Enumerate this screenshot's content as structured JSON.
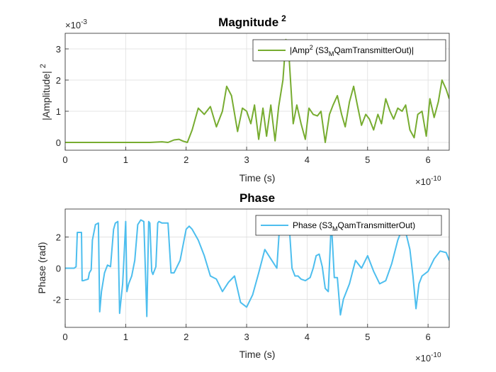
{
  "chart_data": [
    {
      "type": "line",
      "title": "Magnitude",
      "title_sup": "2",
      "xlabel": "Time (s)",
      "ylabel": "|Amplitude|",
      "ylabel_sup": "2",
      "x_exponent": "10",
      "x_exponent_power": "-10",
      "x_multiplier_prefix": "×",
      "y_exponent": "10",
      "y_exponent_power": "-3",
      "y_multiplier_prefix": "×",
      "xlim": [
        0,
        6.35
      ],
      "ylim": [
        -0.25,
        3.5
      ],
      "xticks": [
        "0",
        "1",
        "2",
        "3",
        "4",
        "5",
        "6"
      ],
      "yticks": [
        "0",
        "1",
        "2",
        "3"
      ],
      "grid": true,
      "legend_position": "top-right",
      "color": "#77ac30",
      "series": [
        {
          "name_parts": [
            "|Amp",
            "2",
            " (S3",
            "M",
            "QamTransmitterOut)|"
          ],
          "x": [
            0,
            0.5,
            1.0,
            1.4,
            1.6,
            1.7,
            1.8,
            1.88,
            1.95,
            2.02,
            2.1,
            2.2,
            2.3,
            2.4,
            2.5,
            2.6,
            2.67,
            2.75,
            2.85,
            2.93,
            3.0,
            3.07,
            3.13,
            3.2,
            3.27,
            3.33,
            3.4,
            3.47,
            3.53,
            3.6,
            3.65,
            3.7,
            3.77,
            3.83,
            3.9,
            3.97,
            4.03,
            4.1,
            4.17,
            4.23,
            4.3,
            4.37,
            4.43,
            4.5,
            4.57,
            4.63,
            4.7,
            4.77,
            4.83,
            4.9,
            4.97,
            5.03,
            5.1,
            5.17,
            5.23,
            5.3,
            5.37,
            5.43,
            5.5,
            5.57,
            5.63,
            5.7,
            5.77,
            5.83,
            5.9,
            5.97,
            6.03,
            6.1,
            6.17,
            6.23,
            6.3,
            6.35
          ],
          "y": [
            0,
            0,
            0,
            0,
            0.02,
            0.0,
            0.08,
            0.1,
            0.04,
            0.0,
            0.4,
            1.1,
            0.9,
            1.15,
            0.5,
            1.0,
            1.8,
            1.5,
            0.35,
            1.1,
            1.0,
            0.6,
            1.2,
            0.1,
            1.1,
            0.2,
            1.2,
            0.05,
            1.15,
            2.0,
            3.3,
            2.8,
            0.6,
            1.2,
            0.6,
            0.1,
            1.1,
            0.9,
            0.85,
            1.0,
            0.0,
            0.9,
            1.2,
            1.5,
            0.9,
            0.5,
            1.3,
            1.8,
            1.2,
            0.55,
            0.9,
            0.75,
            0.4,
            0.9,
            0.6,
            1.4,
            1.0,
            0.75,
            1.1,
            1.0,
            1.2,
            0.4,
            0.15,
            0.9,
            1.0,
            0.2,
            1.4,
            0.8,
            1.3,
            2.0,
            1.7,
            1.4
          ]
        }
      ]
    },
    {
      "type": "line",
      "title": "Phase",
      "xlabel": "Time (s)",
      "ylabel": "Phase (rad)",
      "x_exponent": "10",
      "x_exponent_power": "-10",
      "x_multiplier_prefix": "×",
      "xlim": [
        0,
        6.35
      ],
      "ylim": [
        -3.8,
        3.8
      ],
      "xticks": [
        "0",
        "1",
        "2",
        "3",
        "4",
        "5",
        "6"
      ],
      "yticks": [
        "-2",
        "0",
        "2"
      ],
      "ytick_values": [
        -2,
        0,
        2
      ],
      "grid": true,
      "legend_position": "top-right",
      "color": "#4dbeee",
      "series": [
        {
          "name": "Phase (S3",
          "name_sub": "M",
          "name_tail": "QamTransmitterOut)",
          "x": [
            0,
            0.15,
            0.18,
            0.2,
            0.27,
            0.28,
            0.3,
            0.38,
            0.4,
            0.43,
            0.45,
            0.5,
            0.55,
            0.57,
            0.6,
            0.65,
            0.7,
            0.75,
            0.8,
            0.83,
            0.87,
            0.9,
            0.95,
            0.97,
            1.0,
            1.02,
            1.05,
            1.1,
            1.15,
            1.2,
            1.25,
            1.3,
            1.35,
            1.38,
            1.4,
            1.43,
            1.45,
            1.5,
            1.53,
            1.55,
            1.6,
            1.65,
            1.7,
            1.75,
            1.8,
            1.9,
            2.0,
            2.05,
            2.1,
            2.2,
            2.3,
            2.4,
            2.5,
            2.6,
            2.7,
            2.8,
            2.9,
            3.0,
            3.1,
            3.2,
            3.3,
            3.4,
            3.5,
            3.55,
            3.6,
            3.7,
            3.75,
            3.8,
            3.85,
            3.9,
            3.97,
            4.05,
            4.1,
            4.15,
            4.2,
            4.25,
            4.3,
            4.35,
            4.4,
            4.45,
            4.5,
            4.55,
            4.6,
            4.7,
            4.8,
            4.9,
            5.0,
            5.1,
            5.2,
            5.3,
            5.4,
            5.5,
            5.6,
            5.7,
            5.75,
            5.8,
            5.85,
            5.9,
            6.0,
            6.1,
            6.2,
            6.3,
            6.35
          ],
          "y": [
            0,
            0,
            0.1,
            2.3,
            2.3,
            -0.8,
            -0.8,
            -0.7,
            -0.3,
            -0.1,
            1.8,
            2.8,
            2.9,
            -2.8,
            -1.5,
            -0.3,
            0.2,
            0.1,
            2.5,
            2.9,
            3.0,
            -2.9,
            -1.0,
            0.5,
            3.0,
            -1.5,
            -1.0,
            -0.5,
            0.5,
            2.8,
            3.1,
            3.0,
            -3.1,
            3.0,
            2.9,
            -0.2,
            -0.4,
            0.1,
            2.9,
            3.0,
            2.9,
            2.9,
            2.9,
            -0.3,
            -0.3,
            0.5,
            2.5,
            2.7,
            2.5,
            1.8,
            0.8,
            -0.5,
            -0.7,
            -1.5,
            -0.9,
            -0.5,
            -2.2,
            -2.5,
            -1.7,
            -0.3,
            1.2,
            0.6,
            0.0,
            3.0,
            3.3,
            3.0,
            0.0,
            -0.5,
            -0.5,
            -0.7,
            -0.8,
            -0.6,
            0.0,
            0.8,
            0.9,
            0.1,
            -1.3,
            -1.5,
            3.0,
            -0.6,
            -0.6,
            -3.0,
            -2.0,
            -1.0,
            0.5,
            0.0,
            0.8,
            -0.2,
            -1.0,
            -0.8,
            0.3,
            1.8,
            2.8,
            1.2,
            -0.5,
            -2.6,
            -1.0,
            -0.5,
            -0.2,
            0.6,
            1.1,
            1.0,
            0.5
          ]
        }
      ]
    }
  ]
}
